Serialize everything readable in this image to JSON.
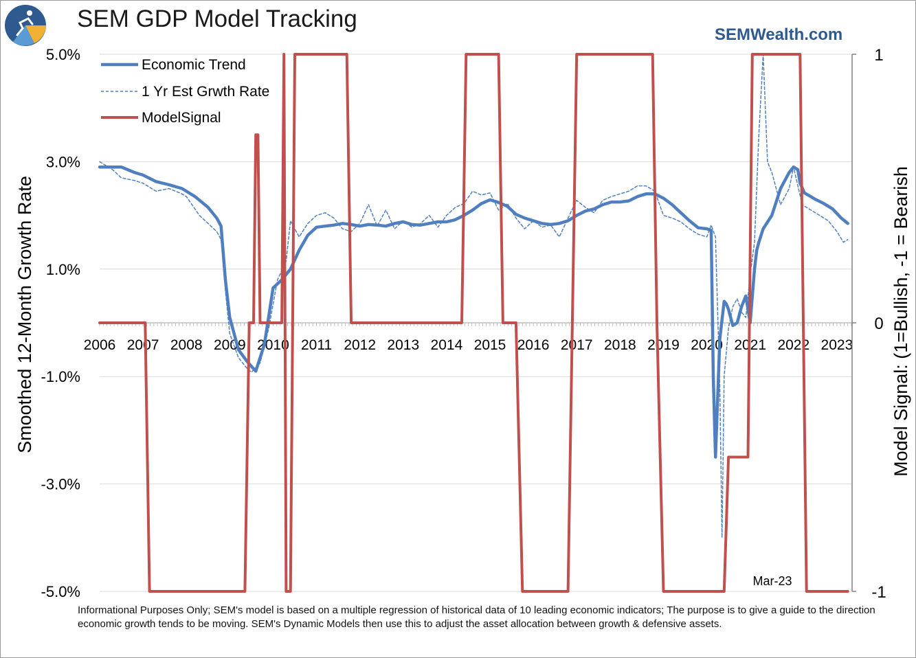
{
  "header": {
    "title": "SEM GDP Model Tracking",
    "brand": "SEMWealth.com"
  },
  "footer": {
    "note": "Informational Purposes Only; SEM's model is based on a multiple regression of historical data of 10 leading economic indicators; The purpose is to give a guide to the direction economic growth tends to be moving. SEM's Dynamic Models then use this to adjust the asset allocation between growth & defensive assets."
  },
  "colors": {
    "trend": "#4f7fbf",
    "estimate": "#4f7fbf",
    "signal": "#c0504d",
    "grid": "#d9d9d9",
    "brand": "#2f5a8f"
  },
  "chart_data": {
    "type": "line",
    "title": "SEM GDP Model Tracking",
    "ylabel": "Smoothed 12-Month Growth Rate",
    "y2label": "Model Signal: (1=Bullish, -1 = Bearish",
    "ylim": [
      -5.0,
      5.0
    ],
    "y2lim": [
      -1,
      1
    ],
    "xlim": [
      2006.0,
      2023.35
    ],
    "yticks": [
      "5.0%",
      "3.0%",
      "1.0%",
      "-1.0%",
      "-3.0%",
      "-5.0%"
    ],
    "yticks_values": [
      5.0,
      3.0,
      1.0,
      -1.0,
      -3.0,
      -5.0
    ],
    "y2ticks": [
      "1",
      "0",
      "-1"
    ],
    "y2ticks_values": [
      1,
      0,
      -1
    ],
    "xticks": [
      "2006",
      "2007",
      "2008",
      "2009",
      "2010",
      "2011",
      "2012",
      "2013",
      "2014",
      "2015",
      "2016",
      "2017",
      "2018",
      "2019",
      "2020",
      "2021",
      "2022",
      "2023"
    ],
    "xticks_values": [
      2006,
      2007,
      2008,
      2009,
      2010,
      2011,
      2012,
      2013,
      2014,
      2015,
      2016,
      2017,
      2018,
      2019,
      2020,
      2021,
      2022,
      2023
    ],
    "annotation": "Mar-23",
    "legend_position": "top-left",
    "grid": true,
    "series": [
      {
        "name": "Economic Trend",
        "axis": "left",
        "style": "solid",
        "x": [
          2006.0,
          2006.3,
          2006.5,
          2006.8,
          2007.0,
          2007.3,
          2007.6,
          2007.9,
          2008.2,
          2008.5,
          2008.7,
          2008.8,
          2008.9,
          2009.0,
          2009.2,
          2009.4,
          2009.6,
          2009.8,
          2010.0,
          2010.2,
          2010.4,
          2010.6,
          2010.8,
          2011.0,
          2011.2,
          2011.4,
          2011.6,
          2011.8,
          2012.0,
          2012.2,
          2012.4,
          2012.6,
          2012.8,
          2013.0,
          2013.2,
          2013.4,
          2013.6,
          2013.8,
          2014.0,
          2014.2,
          2014.4,
          2014.6,
          2014.8,
          2015.0,
          2015.2,
          2015.4,
          2015.6,
          2015.8,
          2016.0,
          2016.2,
          2016.4,
          2016.6,
          2016.8,
          2017.0,
          2017.2,
          2017.4,
          2017.6,
          2017.8,
          2018.0,
          2018.2,
          2018.4,
          2018.6,
          2018.8,
          2019.0,
          2019.2,
          2019.4,
          2019.6,
          2019.8,
          2020.0,
          2020.1,
          2020.15,
          2020.2,
          2020.3,
          2020.4,
          2020.45,
          2020.5,
          2020.6,
          2020.7,
          2020.8,
          2020.9,
          2021.0,
          2021.1,
          2021.15,
          2021.2,
          2021.3,
          2021.5,
          2021.7,
          2021.9,
          2022.0,
          2022.1,
          2022.15,
          2022.25,
          2022.5,
          2022.7,
          2022.9,
          2023.1,
          2023.25
        ],
        "values": [
          2.9,
          2.9,
          2.9,
          2.8,
          2.75,
          2.63,
          2.57,
          2.5,
          2.35,
          2.15,
          1.95,
          1.8,
          0.8,
          0.1,
          -0.5,
          -0.72,
          -0.9,
          -0.4,
          0.65,
          0.8,
          1.0,
          1.35,
          1.63,
          1.78,
          1.8,
          1.82,
          1.85,
          1.83,
          1.8,
          1.83,
          1.82,
          1.8,
          1.85,
          1.88,
          1.83,
          1.82,
          1.85,
          1.88,
          1.88,
          1.92,
          2.0,
          2.1,
          2.22,
          2.29,
          2.24,
          2.17,
          2.02,
          1.95,
          1.9,
          1.85,
          1.83,
          1.85,
          1.9,
          2.0,
          2.08,
          2.12,
          2.2,
          2.25,
          2.25,
          2.27,
          2.35,
          2.4,
          2.4,
          2.32,
          2.2,
          2.05,
          1.9,
          1.77,
          1.75,
          1.72,
          -1.0,
          -2.5,
          -0.3,
          0.4,
          0.35,
          0.25,
          -0.05,
          0.0,
          0.3,
          0.5,
          0.0,
          1.0,
          1.35,
          1.5,
          1.75,
          2.0,
          2.5,
          2.8,
          2.9,
          2.85,
          2.6,
          2.42,
          2.3,
          2.22,
          2.12,
          1.95,
          1.85
        ]
      },
      {
        "name": "1 Yr Est Grwth Rate",
        "axis": "left",
        "style": "dashed",
        "x": [
          2006.0,
          2006.3,
          2006.5,
          2006.8,
          2007.0,
          2007.3,
          2007.6,
          2007.9,
          2008.0,
          2008.3,
          2008.5,
          2008.7,
          2008.8,
          2008.9,
          2009.0,
          2009.2,
          2009.4,
          2009.5,
          2009.7,
          2009.9,
          2010.1,
          2010.3,
          2010.4,
          2010.6,
          2010.8,
          2011.0,
          2011.2,
          2011.4,
          2011.6,
          2011.8,
          2012.0,
          2012.2,
          2012.4,
          2012.6,
          2012.8,
          2013.0,
          2013.2,
          2013.4,
          2013.6,
          2013.8,
          2014.0,
          2014.2,
          2014.4,
          2014.6,
          2014.8,
          2015.0,
          2015.2,
          2015.4,
          2015.6,
          2015.8,
          2016.0,
          2016.2,
          2016.4,
          2016.6,
          2016.8,
          2017.0,
          2017.2,
          2017.4,
          2017.6,
          2017.8,
          2018.0,
          2018.2,
          2018.4,
          2018.6,
          2018.8,
          2019.0,
          2019.2,
          2019.4,
          2019.6,
          2019.8,
          2020.0,
          2020.1,
          2020.2,
          2020.3,
          2020.35,
          2020.4,
          2020.5,
          2020.6,
          2020.7,
          2020.8,
          2020.9,
          2021.0,
          2021.1,
          2021.2,
          2021.3,
          2021.4,
          2021.5,
          2021.7,
          2021.9,
          2022.0,
          2022.2,
          2022.4,
          2022.6,
          2022.8,
          2023.0,
          2023.15,
          2023.25
        ],
        "values": [
          3.0,
          2.85,
          2.7,
          2.65,
          2.6,
          2.45,
          2.5,
          2.4,
          2.35,
          2.0,
          1.85,
          1.7,
          1.55,
          0.6,
          -0.2,
          -0.65,
          -0.85,
          -0.92,
          -0.75,
          -0.1,
          0.8,
          1.15,
          1.9,
          1.6,
          1.85,
          2.0,
          2.05,
          1.95,
          1.75,
          1.7,
          1.85,
          2.2,
          1.8,
          2.1,
          1.75,
          1.9,
          1.78,
          1.85,
          2.0,
          1.78,
          2.0,
          2.15,
          2.22,
          2.45,
          2.38,
          2.42,
          2.1,
          2.22,
          1.95,
          1.75,
          1.9,
          1.78,
          1.82,
          1.6,
          1.95,
          2.28,
          2.15,
          2.05,
          2.28,
          2.35,
          2.4,
          2.45,
          2.55,
          2.55,
          2.45,
          2.0,
          1.95,
          1.88,
          1.75,
          1.65,
          1.6,
          1.82,
          1.6,
          -1.2,
          -4.0,
          -1.0,
          -0.1,
          0.3,
          0.45,
          0.2,
          0.1,
          0.9,
          1.5,
          3.5,
          5.0,
          3.0,
          2.8,
          2.2,
          2.5,
          2.9,
          2.2,
          2.1,
          2.0,
          1.9,
          1.7,
          1.5,
          1.55
        ]
      },
      {
        "name": "ModelSignal",
        "axis": "right",
        "style": "solid",
        "x": [
          2006.0,
          2007.05,
          2007.15,
          2009.35,
          2009.45,
          2009.55,
          2009.6,
          2009.65,
          2009.7,
          2010.2,
          2010.25,
          2010.3,
          2010.4,
          2010.45,
          2010.5,
          2010.55,
          2011.7,
          2011.8,
          2014.35,
          2014.45,
          2015.2,
          2015.3,
          2015.6,
          2015.75,
          2016.8,
          2016.9,
          2017.0,
          2018.75,
          2018.85,
          2019.0,
          2020.4,
          2020.5,
          2020.95,
          2021.05,
          2022.15,
          2022.3,
          2023.25
        ],
        "values": [
          0,
          0,
          -1,
          -1,
          0,
          0,
          0.7,
          0.7,
          0,
          0,
          1,
          -1,
          -1,
          0,
          1,
          1,
          1,
          0,
          0,
          1,
          1,
          0,
          0,
          -1,
          -1,
          0,
          1,
          1,
          0,
          -1,
          -1,
          -0.5,
          -0.5,
          1,
          1,
          -1,
          -1
        ]
      }
    ]
  }
}
